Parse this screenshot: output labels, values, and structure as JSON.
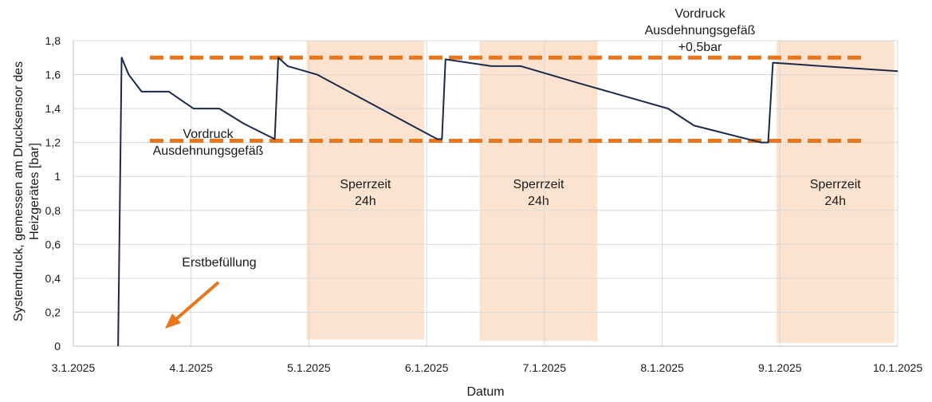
{
  "chart_data": {
    "type": "line",
    "title": "",
    "xlabel": "Datum",
    "ylabel": "Systemdruck, gemessen am Drucksensor des Heizgerätes [bar]",
    "ylabel_lines": [
      "Systemdruck, gemessen am Drucksensor des",
      "Heizgerätes [bar]"
    ],
    "xlim": [
      0,
      7
    ],
    "ylim": [
      0,
      1.8
    ],
    "x_ticks": [
      0,
      1,
      2,
      3,
      4,
      5,
      6,
      7
    ],
    "x_tick_labels": [
      "3.1.2025",
      "4.1.2025",
      "5.1.2025",
      "6.1.2025",
      "7.1.2025",
      "8.1.2025",
      "9.1.2025",
      "10.1.2025"
    ],
    "y_ticks": [
      0,
      0.2,
      0.4,
      0.6,
      0.8,
      1,
      1.2,
      1.4,
      1.6,
      1.8
    ],
    "y_tick_labels": [
      "0",
      "0,2",
      "0,4",
      "0,6",
      "0,8",
      "1",
      "1,2",
      "1,4",
      "1,6",
      "1,8"
    ],
    "grid": true,
    "series": [
      {
        "name": "Systemdruck",
        "color": "#1c2a4a",
        "x": [
          0.38,
          0.41,
          0.47,
          0.58,
          0.81,
          1.02,
          1.24,
          1.45,
          1.71,
          1.74,
          1.82,
          2.07,
          3.09,
          3.13,
          3.16,
          3.55,
          3.8,
          4.29,
          5.05,
          5.27,
          5.84,
          5.9,
          5.94,
          7.0
        ],
        "values": [
          0.0,
          1.7,
          1.6,
          1.5,
          1.5,
          1.4,
          1.4,
          1.31,
          1.22,
          1.7,
          1.65,
          1.6,
          1.22,
          1.22,
          1.69,
          1.65,
          1.65,
          1.55,
          1.4,
          1.3,
          1.2,
          1.2,
          1.67,
          1.62
        ]
      }
    ],
    "reference_lines": [
      {
        "name": "Vordruck Ausdehnungsgefäß",
        "value": 1.21,
        "x_start": 0.65,
        "x_end": 6.7,
        "color": "#e8761c",
        "style": "dashed"
      },
      {
        "name": "Vordruck Ausdehnungsgefäß +0,5bar",
        "value": 1.7,
        "x_start": 0.65,
        "x_end": 6.7,
        "color": "#e8761c",
        "style": "dashed"
      }
    ],
    "shaded_regions": [
      {
        "label_line1": "Sperrzeit",
        "label_line2": "24h",
        "x_start": 1.98,
        "x_end": 2.98,
        "y_start": 0.04,
        "y_end": 1.8,
        "color": "#fbe3cf"
      },
      {
        "label_line1": "Sperrzeit",
        "label_line2": "24h",
        "x_start": 3.45,
        "x_end": 4.45,
        "y_start": 0.03,
        "y_end": 1.8,
        "color": "#fbe3cf"
      },
      {
        "label_line1": "Sperrzeit",
        "label_line2": "24h",
        "x_start": 5.97,
        "x_end": 6.97,
        "y_start": 0.02,
        "y_end": 1.8,
        "color": "#fbe3cf"
      }
    ],
    "annotations": [
      {
        "id": "vordruck",
        "lines": [
          "Vordruck",
          "Ausdehnungsgefäß"
        ]
      },
      {
        "id": "vordruck-plus",
        "lines": [
          "Vordruck",
          "Ausdehnungsgefäß",
          "+0,5bar"
        ]
      },
      {
        "id": "erstbefuellung",
        "lines": [
          "Erstbefüllung"
        ],
        "arrow_color": "#e8761c"
      }
    ]
  }
}
